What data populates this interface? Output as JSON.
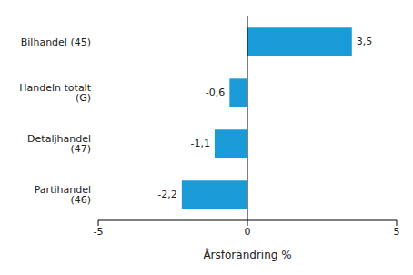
{
  "chart_data": {
    "type": "bar",
    "orientation": "horizontal",
    "categories": [
      "Bilhandel (45)",
      "Handeln totalt (G)",
      "Detaljhandel (47)",
      "Partihandel (46)"
    ],
    "values": [
      3.5,
      -0.6,
      -1.1,
      -2.2
    ],
    "value_labels": [
      "3,5",
      "-0,6",
      "-1,1",
      "-2,2"
    ],
    "data_labels": true,
    "color": "#1a9ad6",
    "x_label": "Årsförändring %",
    "xlim": [
      -5,
      5
    ],
    "xticks": [
      -5,
      0,
      5
    ],
    "grid": false
  }
}
